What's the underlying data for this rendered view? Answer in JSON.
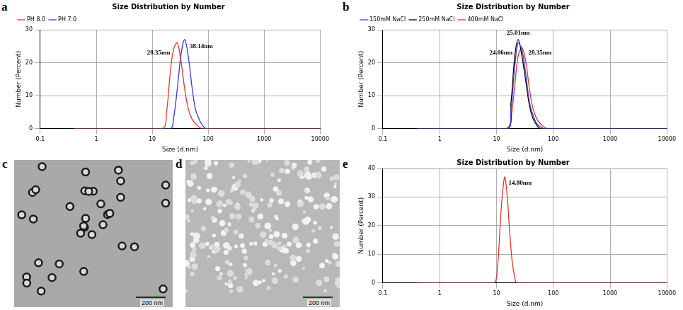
{
  "chart_data": [
    {
      "label": "a",
      "type": "line",
      "title": "Size Distribution by Number",
      "x_label": "Size (d.nm)",
      "y_label": "Number (Percent)",
      "log": "x",
      "grid": true,
      "legend": "top-left",
      "xlim": [
        0.1,
        10000
      ],
      "xticks": [
        0.1,
        1,
        10,
        100,
        1000,
        10000
      ],
      "ylim": [
        0,
        30
      ],
      "yticks": [
        0,
        10,
        20,
        30
      ],
      "series": [
        {
          "name": "PH 8.0",
          "color": "#e8332d",
          "x": [
            0.4,
            15,
            18,
            21,
            24,
            28,
            33,
            38,
            44,
            51,
            59,
            68,
            79,
            10000
          ],
          "values": [
            0,
            0,
            5,
            17,
            24,
            26,
            20,
            12,
            6,
            3,
            1.5,
            0.5,
            0,
            0
          ]
        },
        {
          "name": "PH 7.0",
          "color": "#3a3ae0",
          "x": [
            0.4,
            21,
            24,
            28,
            33,
            38,
            44,
            51,
            59,
            68,
            79,
            91,
            10000
          ],
          "values": [
            0,
            0,
            3,
            12,
            23,
            27,
            22,
            13,
            6,
            3,
            1,
            0,
            0
          ]
        }
      ],
      "annotations": [
        {
          "text": "28.35nm",
          "x": 13,
          "y": 23
        },
        {
          "text": "38.14nm",
          "x": 75,
          "y": 25
        }
      ]
    },
    {
      "label": "b",
      "type": "line",
      "title": "Size Distribution by Number",
      "x_label": "Size (d.nm)",
      "y_label": "Number (Percent)",
      "log": "x",
      "grid": true,
      "legend": "top-left",
      "xlim": [
        0.1,
        10000
      ],
      "xticks": [
        0.1,
        1,
        10,
        100,
        1000,
        10000
      ],
      "ylim": [
        0,
        30
      ],
      "yticks": [
        0,
        10,
        20,
        30
      ],
      "series": [
        {
          "name": "150mM NaCl",
          "color": "#3a3ae0",
          "x": [
            0.4,
            15,
            18,
            21,
            24,
            28,
            33,
            38,
            44,
            51,
            59,
            68,
            10000
          ],
          "values": [
            0,
            0,
            6,
            19,
            26,
            24,
            16,
            8,
            4,
            1.5,
            0.5,
            0,
            0
          ]
        },
        {
          "name": "250mM NaCl",
          "color": "#000000",
          "x": [
            0.4,
            15,
            18,
            21,
            24,
            28,
            33,
            38,
            44,
            51,
            59,
            10000
          ],
          "values": [
            0,
            0,
            8,
            22,
            27,
            22,
            14,
            7,
            3,
            1,
            0,
            0
          ]
        },
        {
          "name": "400mM NaCl",
          "color": "#e8332d",
          "x": [
            0.4,
            16,
            18,
            21,
            24,
            28,
            33,
            38,
            44,
            51,
            59,
            68,
            79,
            10000
          ],
          "values": [
            0,
            0,
            3,
            13,
            22,
            24.5,
            20,
            12,
            6,
            3,
            1.5,
            0.5,
            0,
            0
          ]
        }
      ],
      "annotations": [
        {
          "text": "25.01nm",
          "x": 24,
          "y": 29
        },
        {
          "text": "24.06nm",
          "x": 12,
          "y": 23
        },
        {
          "text": "28.35nm",
          "x": 58,
          "y": 23
        }
      ]
    },
    {
      "label": "e",
      "type": "line",
      "title": "Size Distribution by Number",
      "x_label": "Size (d.nm)",
      "y_label": "Number (Percent)",
      "log": "x",
      "grid": true,
      "xlim": [
        0.1,
        10000
      ],
      "xticks": [
        0.1,
        1,
        10,
        100,
        1000,
        10000
      ],
      "ylim": [
        0,
        40
      ],
      "yticks": [
        0,
        10,
        20,
        30,
        40
      ],
      "series": [
        {
          "color": "#e8332d",
          "x": [
            0.4,
            9,
            10,
            11,
            12,
            13,
            14,
            15.5,
            17,
            19,
            21,
            23,
            10000
          ],
          "values": [
            0,
            0,
            2,
            12,
            25,
            33,
            37,
            30,
            18,
            7,
            2,
            0,
            0
          ]
        }
      ],
      "annotations": [
        {
          "text": "14.80nm",
          "x": 26,
          "y": 35
        }
      ]
    }
  ],
  "images": [
    {
      "label": "c",
      "scale_bar": "200 nm"
    },
    {
      "label": "d",
      "scale_bar": "200 nm"
    }
  ]
}
